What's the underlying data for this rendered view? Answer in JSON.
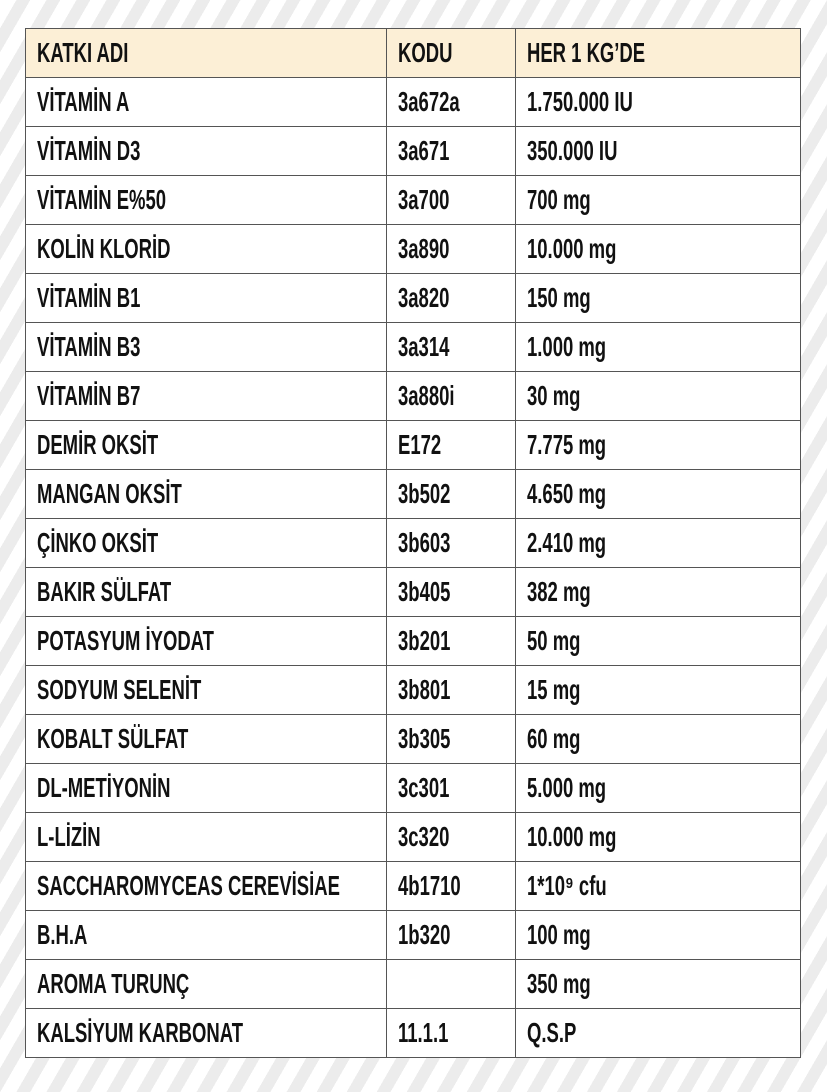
{
  "table": {
    "header": [
      "KATKI ADI",
      "KODU",
      "HER 1 KG’DE"
    ],
    "rows": [
      [
        "VİTAMİN A",
        "3a672a",
        "1.750.000 IU"
      ],
      [
        "VİTAMİN D3",
        "3a671",
        "350.000 IU"
      ],
      [
        "VİTAMİN E%50",
        "3a700",
        "700 mg"
      ],
      [
        "KOLİN KLORİD",
        "3a890",
        "10.000 mg"
      ],
      [
        "VİTAMİN B1",
        "3a820",
        "150 mg"
      ],
      [
        "VİTAMİN B3",
        "3a314",
        "1.000 mg"
      ],
      [
        "VİTAMİN B7",
        "3a880i",
        "30 mg"
      ],
      [
        "DEMİR OKSİT",
        "E172",
        "7.775 mg"
      ],
      [
        "MANGAN OKSİT",
        "3b502",
        "4.650 mg"
      ],
      [
        "ÇİNKO OKSİT",
        "3b603",
        "2.410 mg"
      ],
      [
        "BAKIR SÜLFAT",
        "3b405",
        "382 mg"
      ],
      [
        "POTASYUM İYODAT",
        "3b201",
        "50 mg"
      ],
      [
        "SODYUM SELENİT",
        "3b801",
        "15 mg"
      ],
      [
        "KOBALT SÜLFAT",
        "3b305",
        "60 mg"
      ],
      [
        "DL-METİYONİN",
        "3c301",
        "5.000 mg"
      ],
      [
        "L-LİZİN",
        "3c320",
        "10.000 mg"
      ],
      [
        "SACCHAROMYCEAS CEREVİSİAE",
        "4b1710",
        "1*10⁹ cfu"
      ],
      [
        "B.H.A",
        "1b320",
        "100 mg"
      ],
      [
        "AROMA TURUNÇ",
        null,
        "350 mg"
      ],
      [
        "KALSİYUM KARBONAT",
        "11.1.1",
        "Q.S.P"
      ]
    ]
  }
}
